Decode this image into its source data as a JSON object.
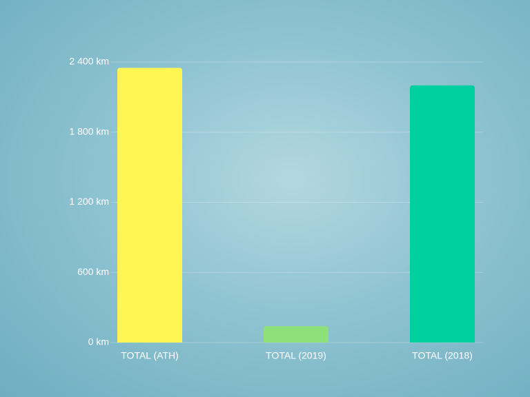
{
  "chart_data": {
    "type": "bar",
    "categories": [
      "TOTAL (ATH)",
      "TOTAL (2019)",
      "TOTAL (2018)"
    ],
    "values": [
      2350,
      140,
      2200
    ],
    "colors": [
      "#fff654",
      "#8de07a",
      "#00cfa0"
    ],
    "ylim": [
      0,
      2400
    ],
    "yticks": [
      {
        "value": 0,
        "label": "0 km"
      },
      {
        "value": 600,
        "label": "600 km"
      },
      {
        "value": 1200,
        "label": "1 200 km"
      },
      {
        "value": 1800,
        "label": "1 800 km"
      },
      {
        "value": 2400,
        "label": "2 400 km"
      }
    ],
    "grid": true
  }
}
